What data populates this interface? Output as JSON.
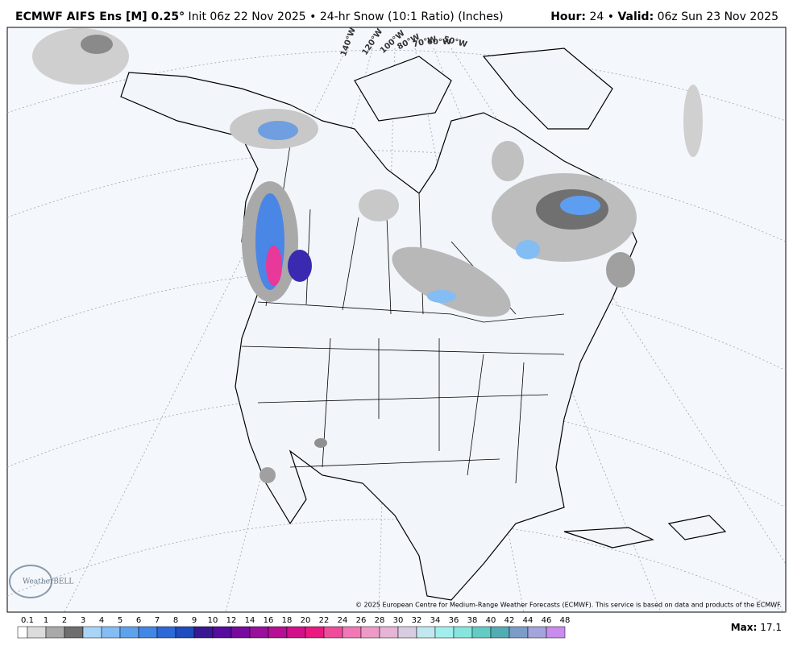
{
  "header": {
    "left": [
      {
        "text": "ECMWF AIFS Ens [M] 0.25°",
        "bold": true
      },
      {
        "text": " Init 06z 22 Nov 2025 • 24-hr Snow (10:1 Ratio) (Inches)",
        "bold": false
      }
    ],
    "right": [
      {
        "text": "Hour:",
        "bold": true
      },
      {
        "text": " 24 • ",
        "bold": false
      },
      {
        "text": "Valid:",
        "bold": true
      },
      {
        "text": " 06z Sun 23 Nov 2025",
        "bold": false
      }
    ]
  },
  "map": {
    "longitude_labels": [
      "140°W",
      "120°W",
      "100°W",
      "80°W",
      "70°W",
      "60°W",
      "50°W"
    ],
    "logo": "WeatherBELL",
    "copyright": "© 2025 European Centre for Medium-Range Weather Forecasts (ECMWF). This service is based on data and products of the ECMWF."
  },
  "legend": {
    "levels": [
      0.1,
      1,
      2,
      3,
      4,
      5,
      6,
      7,
      8,
      9,
      10,
      12,
      14,
      16,
      18,
      20,
      22,
      24,
      26,
      28,
      30,
      32,
      34,
      36,
      38,
      40,
      42,
      44,
      46,
      48
    ],
    "colors": [
      "#ffffff",
      "#dcdcdc",
      "#a9a9a9",
      "#6e6e6e",
      "#a8d4f8",
      "#84bcf4",
      "#5ea2ee",
      "#4286e6",
      "#2c68d6",
      "#1f4cbe",
      "#3a1894",
      "#560c9e",
      "#780aa0",
      "#98109c",
      "#b60e94",
      "#d2108a",
      "#ea1880",
      "#f04c9c",
      "#f078b6",
      "#ee9ac8",
      "#e6b4d4",
      "#d8cce0",
      "#bfe8f0",
      "#a2eeee",
      "#86e6de",
      "#62ccc4",
      "#52acb4",
      "#7c9cc8",
      "#a4a4dc",
      "#c88cee"
    ],
    "max_label": "Max:",
    "max_value": 17.1
  }
}
